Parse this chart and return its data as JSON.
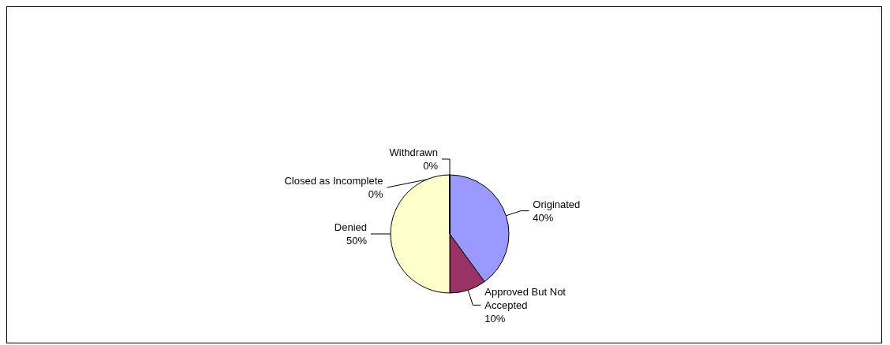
{
  "chart_data": {
    "type": "pie",
    "categories": [
      "Originated",
      "Approved But Not Accepted",
      "Denied",
      "Withdrawn",
      "Closed as Incomplete"
    ],
    "values": [
      40,
      10,
      50,
      0,
      0
    ],
    "value_labels": [
      "40%",
      "10%",
      "50%",
      "0%",
      "0%"
    ],
    "colors": [
      "#9999ff",
      "#993366",
      "#ffffcc",
      "#ffffff",
      "#ccffff"
    ],
    "legend": false
  }
}
